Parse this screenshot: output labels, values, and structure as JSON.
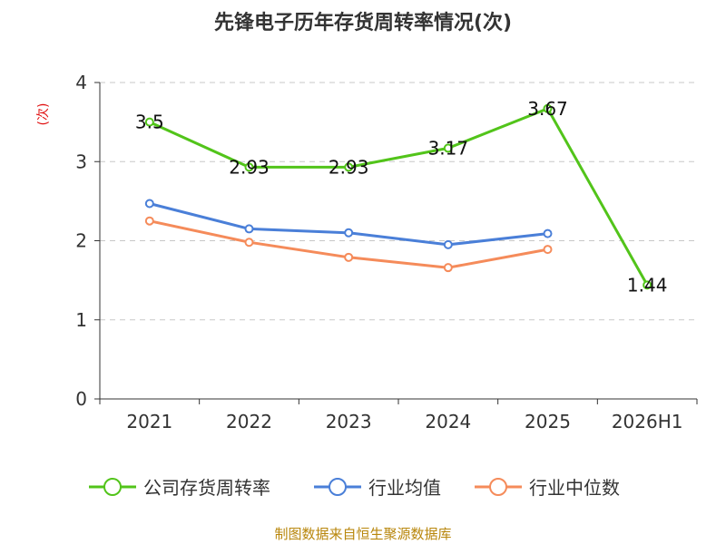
{
  "title": "先锋电子历年存货周转率情况(次)",
  "unit_label": "(次)",
  "source": "制图数据来自恒生聚源数据库",
  "colors": {
    "company": "#52c41a",
    "industry_avg": "#4a7fd8",
    "industry_median": "#f58b5a",
    "grid": "#c8c8c8",
    "axis": "#333333"
  },
  "chart_data": {
    "type": "line",
    "categories": [
      "2021",
      "2022",
      "2023",
      "2024",
      "2025",
      "2026H1"
    ],
    "ylim": [
      0,
      4
    ],
    "yticks": [
      "0",
      "1",
      "2",
      "3",
      "4"
    ],
    "grid": true,
    "legend_position": "bottom",
    "series": [
      {
        "name": "公司存货周转率",
        "values": [
          3.5,
          2.93,
          2.93,
          3.17,
          3.67,
          1.44
        ],
        "labels": [
          "3.5",
          "2.93",
          "2.93",
          "3.17",
          "3.67",
          "1.44"
        ]
      },
      {
        "name": "行业均值",
        "values": [
          2.47,
          2.15,
          2.1,
          1.95,
          2.09,
          null
        ]
      },
      {
        "name": "行业中位数",
        "values": [
          2.25,
          1.98,
          1.79,
          1.66,
          1.89,
          null
        ]
      }
    ]
  }
}
